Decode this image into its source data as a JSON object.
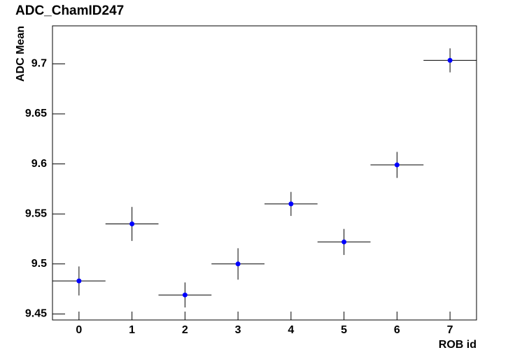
{
  "chart_data": {
    "type": "scatter",
    "title": "ADC_ChamID247",
    "x_label": "ROB id",
    "y_label": "ADC Mean",
    "x": [
      0,
      1,
      2,
      3,
      4,
      5,
      6,
      7
    ],
    "values": [
      9.483,
      9.54,
      9.469,
      9.5,
      9.56,
      9.522,
      9.599,
      9.7035
    ],
    "errors": [
      0.0145,
      0.017,
      0.0125,
      0.0157,
      0.012,
      0.013,
      0.013,
      0.012
    ],
    "xerr": [
      0.5,
      0.5,
      0.5,
      0.5,
      0.5,
      0.5,
      0.5,
      0.5
    ],
    "color": "#0000ff",
    "xlim": [
      -0.5,
      7.5
    ],
    "xticks": [
      0,
      1,
      2,
      3,
      4,
      5,
      6,
      7
    ],
    "ylim": [
      9.444,
      9.738
    ],
    "yticks": [
      9.45,
      9.5,
      9.55,
      9.6,
      9.65,
      9.7
    ],
    "grid": false
  }
}
